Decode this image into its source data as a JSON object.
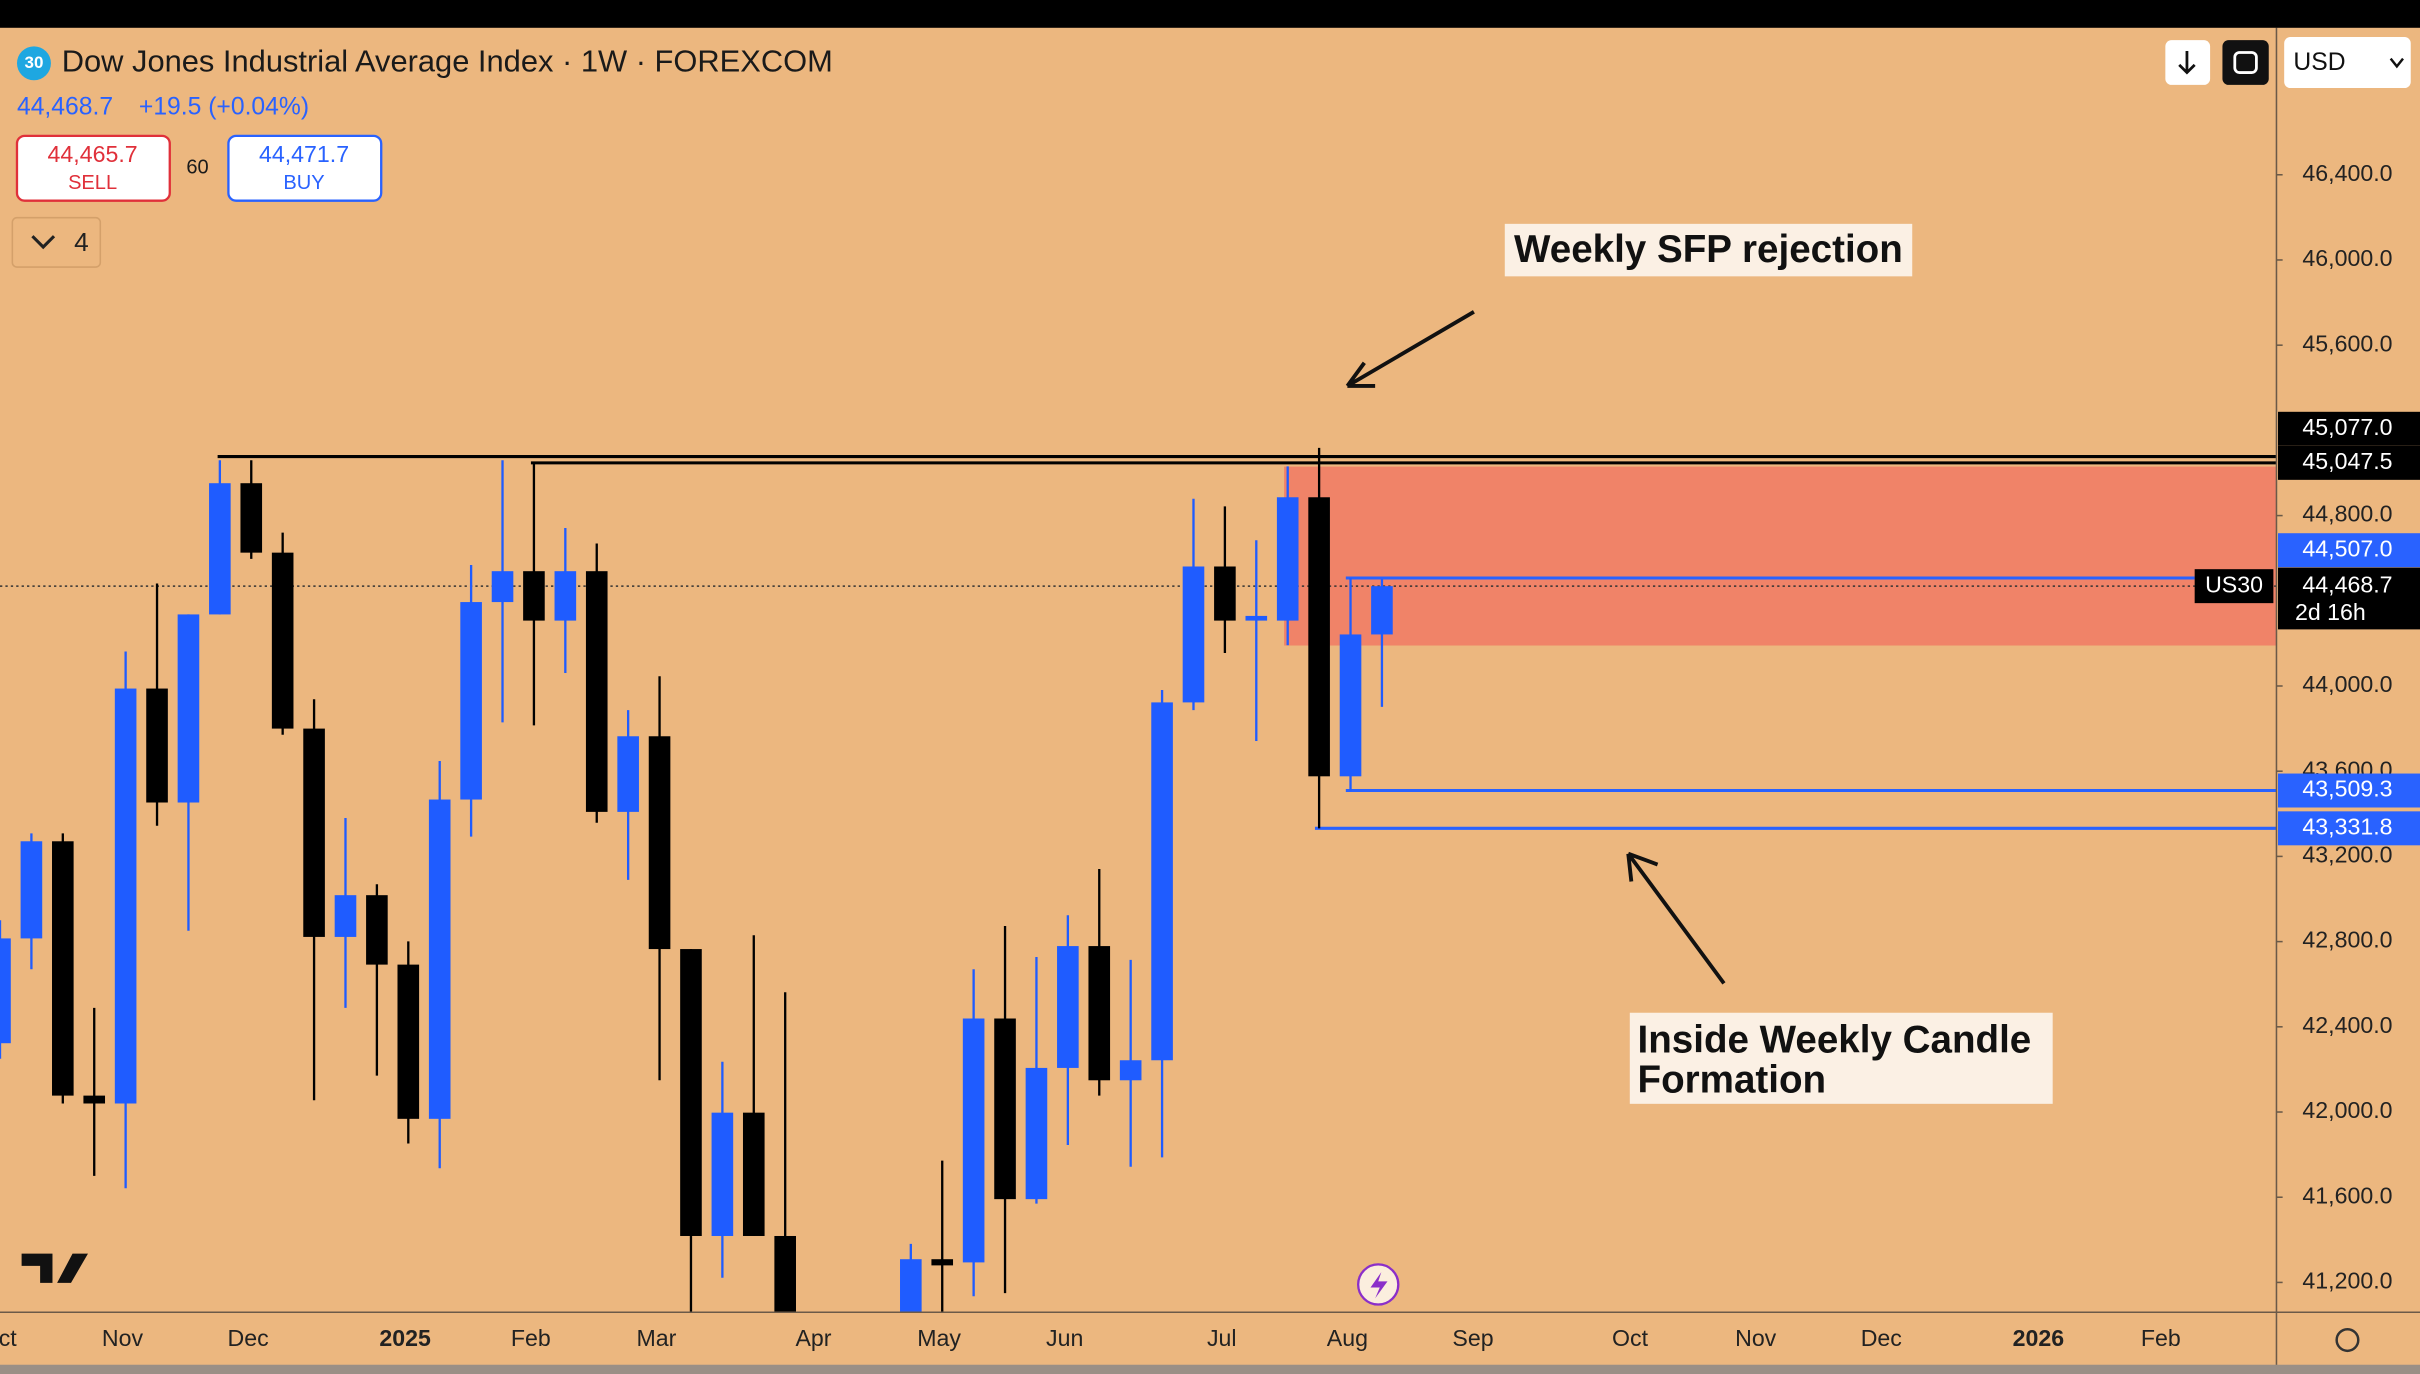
{
  "header": {
    "badge": "30",
    "price": "44,468.7",
    "change": "+19.5 (+0.04%)",
    "sell_price": "44,465.7",
    "sell": "SELL",
    "spread": "60",
    "buy_price": "44,471.7",
    "buy": "BUY",
    "indicators": "4",
    "currency": "USD"
  },
  "chart_data": {
    "type": "candlestick",
    "title": "Dow Jones Industrial Average Index · 1W · FOREXCOM",
    "categories": [
      null,
      null,
      null,
      null,
      null,
      null,
      null,
      null,
      null,
      null,
      null,
      null,
      null,
      null,
      null,
      null,
      null,
      null,
      null,
      null,
      null,
      null,
      null,
      null,
      null,
      null,
      null,
      null,
      null,
      null,
      null,
      null,
      null,
      null,
      null,
      null,
      null,
      null,
      null,
      null,
      null,
      null,
      null,
      null,
      null
    ],
    "open": [
      42323,
      42815,
      43271,
      42077,
      42040,
      43988,
      43453,
      44336,
      44952,
      44626,
      43800,
      42822,
      43018,
      42692,
      41968,
      43467,
      44394,
      44539,
      44307,
      44539,
      43409,
      43764,
      42765,
      41418,
      41997,
      41418,
      null,
      null,
      null,
      40900,
      41309,
      41294,
      42439,
      41591,
      42207,
      42779,
      42149,
      42243,
      43923,
      44561,
      44307,
      44307,
      44886,
      43576,
      44242
    ],
    "high": [
      42900,
      43308,
      43308,
      42489,
      44162,
      44481,
      44336,
      45060,
      45060,
      44720,
      43938,
      43380,
      43069,
      42801,
      43648,
      44568,
      45060,
      45047,
      44742,
      44669,
      43887,
      44046,
      42765,
      42236,
      42830,
      42562,
      null,
      null,
      null,
      41381,
      41772,
      42670,
      42873,
      42728,
      42924,
      43141,
      42714,
      43981,
      44879,
      44843,
      44684,
      45031,
      45118,
      44507,
      44500
    ],
    "low": [
      42250,
      42670,
      42040,
      41700,
      41642,
      43344,
      42851,
      44336,
      44597,
      43771,
      42055,
      42489,
      42171,
      41852,
      41736,
      43293,
      43829,
      43815,
      44061,
      43358,
      43090,
      42149,
      40900,
      41222,
      41418,
      40500,
      null,
      null,
      null,
      40700,
      40900,
      41135,
      41150,
      41570,
      41845,
      42077,
      41743,
      41787,
      43887,
      44155,
      43742,
      44191,
      43331.8,
      43509.3,
      43902
    ],
    "close": [
      42815,
      43271,
      42077,
      42040,
      43988,
      43453,
      44336,
      44952,
      44626,
      43800,
      42822,
      43018,
      42692,
      41968,
      43467,
      44394,
      44539,
      44307,
      44539,
      43409,
      43764,
      42765,
      41418,
      41997,
      41418,
      40800,
      null,
      null,
      null,
      41309,
      41280,
      42439,
      41591,
      42207,
      42779,
      42149,
      42243,
      43923,
      44561,
      44307,
      44329,
      44886,
      43576,
      44242,
      44468.7
    ],
    "up_color": "#1f5cff",
    "down_color": "#000000",
    "ylim": [
      41060,
      47090
    ],
    "yticks": [
      {
        "value": 41200,
        "label": "41,200.0"
      },
      {
        "value": 41600,
        "label": "41,600.0"
      },
      {
        "value": 42000,
        "label": "42,000.0"
      },
      {
        "value": 42400,
        "label": "42,400.0"
      },
      {
        "value": 42800,
        "label": "42,800.0"
      },
      {
        "value": 43200,
        "label": "43,200.0"
      },
      {
        "value": 43600,
        "label": "43,600.0"
      },
      {
        "value": 44000,
        "label": "44,000.0"
      },
      {
        "value": 44800,
        "label": "44,800.0"
      },
      {
        "value": 45600,
        "label": "45,600.0"
      },
      {
        "value": 46000,
        "label": "46,000.0"
      },
      {
        "value": 46400,
        "label": "46,400.0"
      }
    ],
    "xticks": [
      {
        "value": -0.1,
        "label": "ct"
      },
      {
        "value": 3.9,
        "label": "Nov"
      },
      {
        "value": 7.9,
        "label": "Dec"
      },
      {
        "value": 12.9,
        "label": "2025"
      },
      {
        "value": 16.9,
        "label": "Feb"
      },
      {
        "value": 20.9,
        "label": "Mar"
      },
      {
        "value": 25.9,
        "label": "Apr"
      },
      {
        "value": 29.9,
        "label": "May"
      },
      {
        "value": 33.9,
        "label": "Jun"
      },
      {
        "value": 38.9,
        "label": "Jul"
      },
      {
        "value": 42.9,
        "label": "Aug"
      },
      {
        "value": 46.9,
        "label": "Sep"
      },
      {
        "value": 51.9,
        "label": "Oct"
      },
      {
        "value": 55.9,
        "label": "Nov"
      },
      {
        "value": 59.9,
        "label": "Dec"
      },
      {
        "value": 64.9,
        "label": "2026"
      },
      {
        "value": 68.8,
        "label": "Feb"
      }
    ],
    "levels": [
      {
        "value": 45077,
        "label": "45,077.0",
        "color": "#000000"
      },
      {
        "value": 45047.5,
        "label": "45,047.5",
        "color": "#000000"
      },
      {
        "value": 44507,
        "label": "44,507.0",
        "color": "#2962ff"
      },
      {
        "value": 43509.3,
        "label": "43,509.3",
        "color": "#2962ff"
      },
      {
        "value": 43331.8,
        "label": "43,331.8",
        "color": "#2962ff"
      }
    ],
    "zone": {
      "top": 45030,
      "bottom": 44190,
      "color": "#f08368"
    },
    "current": {
      "value": 44468.7,
      "label": "44,468.7",
      "countdown": "2d 16h",
      "symbol": "US30"
    },
    "annotations": [
      [
        "Weekly SFP rejection"
      ],
      [
        "Inside Weekly Candle",
        "Formation"
      ]
    ]
  }
}
